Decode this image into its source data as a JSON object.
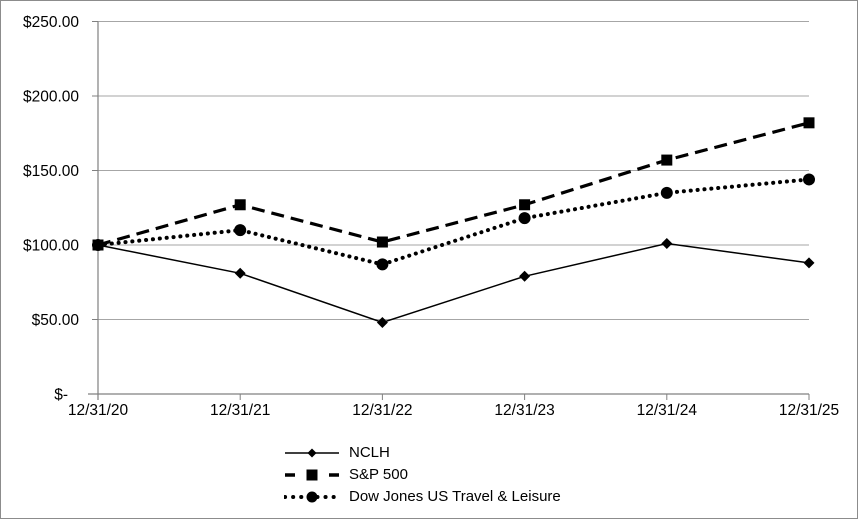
{
  "chart_data": {
    "type": "line",
    "title": "",
    "categories": [
      "12/31/20",
      "12/31/21",
      "12/31/22",
      "12/31/23",
      "12/31/24",
      "12/31/25"
    ],
    "series": [
      {
        "name": "NCLH",
        "marker": "diamond",
        "line_style": "solid",
        "values": [
          100,
          81,
          48,
          79,
          101,
          88
        ]
      },
      {
        "name": "S&P 500",
        "marker": "square",
        "line_style": "dashed",
        "values": [
          100,
          127,
          102,
          127,
          157,
          182
        ]
      },
      {
        "name": "Dow Jones US Travel & Leisure",
        "marker": "circle",
        "line_style": "dotted",
        "values": [
          100,
          110,
          87,
          118,
          135,
          144
        ]
      }
    ],
    "y_ticks": [
      {
        "value": 0,
        "label": "$-"
      },
      {
        "value": 50,
        "label": "$50.00"
      },
      {
        "value": 100,
        "label": "$100.00"
      },
      {
        "value": 150,
        "label": "$150.00"
      },
      {
        "value": 200,
        "label": "$200.00"
      },
      {
        "value": 250,
        "label": "$250.00"
      }
    ],
    "ylim": [
      0,
      250
    ],
    "xlabel": "",
    "ylabel": "",
    "grid": true,
    "legend_position": "bottom-center",
    "colors": {
      "series": "#000000",
      "gridline": "#a6a6a6",
      "axis": "#808080",
      "text": "#000000",
      "background": "#ffffff",
      "border": "#8c8c8c"
    }
  }
}
